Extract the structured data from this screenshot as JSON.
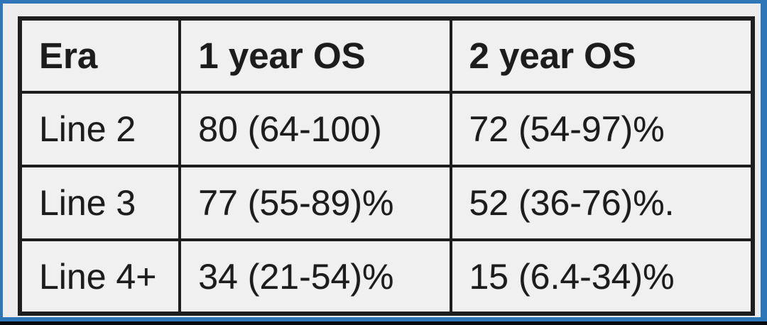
{
  "colors": {
    "frame_blue": "#2f76b8",
    "slide_background": "#ededee",
    "cell_background": "#f1f0f0",
    "table_border": "#1e1e1e",
    "text": "#1c1c1c",
    "letterbox_black": "#07090c"
  },
  "table": {
    "headers": [
      "Era",
      "1 year OS",
      "2 year OS"
    ],
    "rows": [
      [
        "Line 2",
        "80 (64-100)",
        "72 (54-97)%"
      ],
      [
        "Line 3",
        "77 (55-89)%",
        "52 (36-76)%."
      ],
      [
        "Line 4+",
        "34 (21-54)%",
        "15 (6.4-34)%"
      ]
    ]
  },
  "chart_data": {
    "type": "table",
    "columns": [
      "Era",
      "1 year OS",
      "2 year OS"
    ],
    "rows": [
      {
        "era": "Line 2",
        "os_1_year": "80 (64-100)",
        "os_2_year": "72 (54-97)%"
      },
      {
        "era": "Line 3",
        "os_1_year": "77 (55-89)%",
        "os_2_year": "52 (36-76)%."
      },
      {
        "era": "Line 4+",
        "os_1_year": "34 (21-54)%",
        "os_2_year": "15 (6.4-34)%"
      }
    ],
    "numeric": {
      "categories": [
        "Line 2",
        "Line 3",
        "Line 4+"
      ],
      "os_1_year_percent": [
        80,
        77,
        34
      ],
      "os_1_year_ci": [
        [
          64,
          100
        ],
        [
          55,
          89
        ],
        [
          21,
          54
        ]
      ],
      "os_2_year_percent": [
        72,
        52,
        15
      ],
      "os_2_year_ci": [
        [
          54,
          97
        ],
        [
          36,
          76
        ],
        [
          6.4,
          34
        ]
      ]
    }
  }
}
